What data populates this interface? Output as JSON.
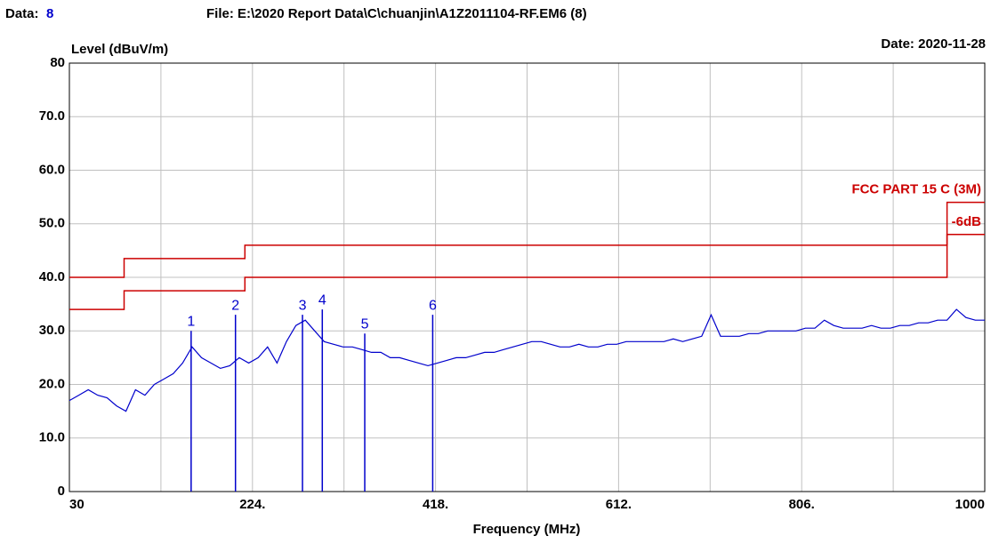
{
  "chart_data": {
    "type": "line",
    "data_label": "Data:",
    "data_number": "8",
    "file": "File: E:\\2020 Report Data\\C\\chuanjin\\A1Z2011104-RF.EM6  (8)",
    "date": "Date: 2020-11-28",
    "ylabel": "Level (dBuV/m)",
    "xlabel": "Frequency (MHz)",
    "xlim": [
      30,
      1000
    ],
    "ylim": [
      0,
      80
    ],
    "xticks": [
      30,
      {
        "value": 224,
        "label": "224."
      },
      {
        "value": 418,
        "label": "418."
      },
      {
        "value": 612,
        "label": "612."
      },
      {
        "value": 806,
        "label": "806."
      },
      1000
    ],
    "x_minor_ticks": [
      127,
      321,
      515,
      709,
      903
    ],
    "yticks": [
      0,
      {
        "value": 10,
        "label": "10.0"
      },
      {
        "value": 20,
        "label": "20.0"
      },
      {
        "value": 30,
        "label": "30.0"
      },
      {
        "value": 40,
        "label": "40.0"
      },
      {
        "value": 50,
        "label": "50.0"
      },
      {
        "value": 60,
        "label": "60.0"
      },
      {
        "value": 70,
        "label": "70.0"
      },
      80
    ],
    "grid": true,
    "limits": [
      {
        "name": "FCC PART 15 C (3M)",
        "color": "#cc0000",
        "x": [
          30,
          88,
          88,
          216,
          216,
          960,
          960,
          1000
        ],
        "values": [
          40,
          40,
          43.5,
          43.5,
          46,
          46,
          54,
          54
        ]
      },
      {
        "name": "-6dB",
        "color": "#cc0000",
        "x": [
          30,
          88,
          88,
          216,
          216,
          960,
          960,
          1000
        ],
        "values": [
          34,
          34,
          37.5,
          37.5,
          40,
          40,
          48,
          48
        ]
      }
    ],
    "series": [
      {
        "color": "#0000cc",
        "x": [
          30,
          40,
          50,
          60,
          70,
          80,
          90,
          100,
          110,
          120,
          130,
          140,
          150,
          160,
          170,
          180,
          190,
          200,
          210,
          220,
          230,
          240,
          250,
          260,
          270,
          280,
          290,
          300,
          310,
          320,
          330,
          340,
          350,
          360,
          370,
          380,
          390,
          400,
          410,
          420,
          430,
          440,
          450,
          460,
          470,
          480,
          490,
          500,
          510,
          520,
          530,
          540,
          550,
          560,
          570,
          580,
          590,
          600,
          610,
          620,
          630,
          640,
          650,
          660,
          670,
          680,
          690,
          700,
          710,
          720,
          730,
          740,
          750,
          760,
          770,
          780,
          790,
          800,
          810,
          820,
          830,
          840,
          850,
          860,
          870,
          880,
          890,
          900,
          910,
          920,
          930,
          940,
          950,
          960,
          970,
          980,
          990,
          1000
        ],
        "values": [
          17,
          18,
          19,
          18,
          17.5,
          16,
          15,
          19,
          18,
          20,
          21,
          22,
          24,
          27,
          25,
          24,
          23,
          23.5,
          25,
          24,
          25,
          27,
          24,
          28,
          31,
          32,
          30,
          28,
          27.5,
          27,
          27,
          26.5,
          26,
          26,
          25,
          25,
          24.5,
          24,
          23.5,
          24,
          24.5,
          25,
          25,
          25.5,
          26,
          26,
          26.5,
          27,
          27.5,
          28,
          28,
          27.5,
          27,
          27,
          27.5,
          27,
          27,
          27.5,
          27.5,
          28,
          28,
          28,
          28,
          28,
          28.5,
          28,
          28.5,
          29,
          33,
          29,
          29,
          29,
          29.5,
          29.5,
          30,
          30,
          30,
          30,
          30.5,
          30.5,
          32,
          31,
          30.5,
          30.5,
          30.5,
          31,
          30.5,
          30.5,
          31,
          31,
          31.5,
          31.5,
          32,
          32,
          34,
          32.5,
          32,
          32
        ]
      }
    ],
    "markers": {
      "color": "#0000cc",
      "labels": [
        "1",
        "2",
        "3",
        "4",
        "5",
        "6"
      ],
      "x": [
        159,
        206,
        277,
        298,
        343,
        415
      ],
      "values": [
        30,
        33,
        33,
        34,
        29.5,
        33
      ]
    }
  }
}
